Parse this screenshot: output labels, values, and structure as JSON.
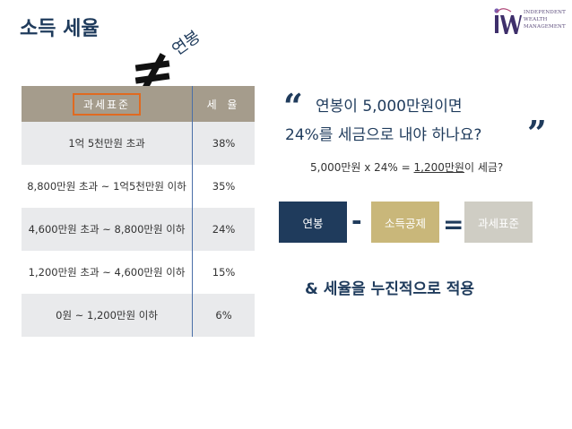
{
  "page": {
    "title": "소득 세율"
  },
  "logo": {
    "lines": [
      "INDEPENDENT",
      "WEALTH",
      "MANAGEMENT"
    ],
    "mark_text": "iWM"
  },
  "annotation": {
    "symbol": "≠",
    "word": "연봉"
  },
  "table": {
    "headers": [
      "과세표준",
      "세 율"
    ],
    "rows": [
      [
        "1억 5천만원 초과",
        "38%"
      ],
      [
        "8,800만원 초과 ~ 1억5천만원 이하",
        "35%"
      ],
      [
        "4,600만원 초과 ~ 8,800만원 이하",
        "24%"
      ],
      [
        "1,200만원 초과 ~ 4,600만원 이하",
        "15%"
      ],
      [
        "0원 ~ 1,200만원 이하",
        "6%"
      ]
    ]
  },
  "question": {
    "open_quote": "“",
    "line1": "연봉이 5,000만원이면",
    "line2": "24%를 세금으로 내야 하나요?",
    "close_quote": "”"
  },
  "calc": {
    "prefix": "5,000만원 x 24% = ",
    "result": "1,200만원",
    "suffix": "이 세금?"
  },
  "formula": {
    "term1": "연봉",
    "op1": "-",
    "term2": "소득공제",
    "op2": "=",
    "term3": "과세표준"
  },
  "footer": {
    "text": "& 세율을 누진적으로 적용"
  },
  "colors": {
    "navy": "#1f3b5c",
    "header_bg": "#a59c8c",
    "highlight_border": "#e06a20",
    "gold": "#c9b77a",
    "gray_pill": "#cfcdc4"
  }
}
